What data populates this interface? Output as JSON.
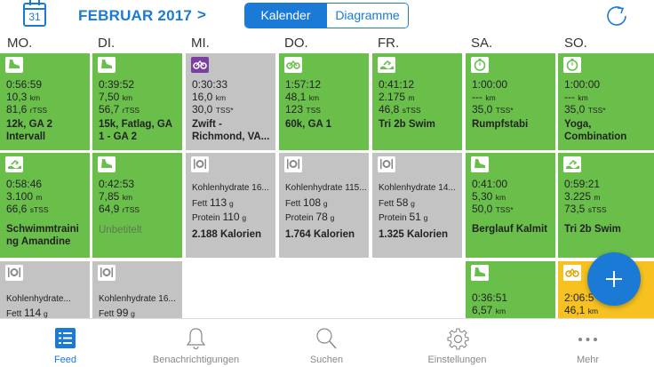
{
  "header": {
    "calendar_day": "31",
    "month_title": "FEBRUAR 2017",
    "month_chevron": ">",
    "segments": [
      "Kalender",
      "Diagramme"
    ]
  },
  "weekdays": [
    "MO.",
    "DI.",
    "MI.",
    "DO.",
    "FR.",
    "SA.",
    "SO."
  ],
  "row1": [
    {
      "icon": "running-shoe-icon",
      "time": "0:56:59",
      "dist": "10,3",
      "dist_unit": "km",
      "score": "81,6",
      "score_unit": "rTSS",
      "title": "12k, GA 2",
      "title2": "Intervall"
    },
    {
      "icon": "running-shoe-icon",
      "time": "0:39:52",
      "dist": "7,50",
      "dist_unit": "km",
      "score": "56,7",
      "score_unit": "rTSS",
      "title": "15k, Fatlag, GA",
      "title2": "1 - GA 2"
    },
    {
      "icon": "bike-icon",
      "time": "0:30:33",
      "dist": "16,0",
      "dist_unit": "km",
      "score": "30,0",
      "score_unit": "TSS*",
      "title": "Zwift -",
      "title2": "Richmond, VA..."
    },
    {
      "icon": "bike-icon",
      "time": "1:57:12",
      "dist": "48,1",
      "dist_unit": "km",
      "score": "123",
      "score_unit": "TSS",
      "title": "60k, GA 1",
      "title2": ""
    },
    {
      "icon": "swim-icon",
      "time": "0:41:12",
      "dist": "2.175",
      "dist_unit": "m",
      "score": "46,8",
      "score_unit": "sTSS",
      "title": "Tri 2b Swim",
      "title2": ""
    },
    {
      "icon": "stopwatch-icon",
      "time": "1:00:00",
      "dist": "---",
      "dist_unit": "km",
      "score": "35,0",
      "score_unit": "TSS*",
      "title": "Rumpfstabi",
      "title2": ""
    },
    {
      "icon": "stopwatch-icon",
      "time": "1:00:00",
      "dist": "---",
      "dist_unit": "km",
      "score": "35,0",
      "score_unit": "TSS*",
      "title": "Yoga,",
      "title2": "Combination"
    }
  ],
  "row2": [
    {
      "icon": "swim-icon",
      "time": "0:58:46",
      "dist": "3.100",
      "dist_unit": "m",
      "score": "66,6",
      "score_unit": "sTSS",
      "title": "Schwimmtraini",
      "title2": "ng Amandine"
    },
    {
      "icon": "running-shoe-icon",
      "time": "0:42:53",
      "dist": "7,85",
      "dist_unit": "km",
      "score": "64,9",
      "score_unit": "rTSS",
      "title": "Unbetitelt",
      "title2": ""
    },
    {
      "nutrition": true,
      "carbs": "Kohlenhydrate 16...",
      "fat_label": "Fett",
      "fat": "113",
      "protein_label": "Protein",
      "protein": "110",
      "unit": "g",
      "calories": "2.188 Kalorien"
    },
    {
      "nutrition": true,
      "carbs": "Kohlenhydrate 115...",
      "fat_label": "Fett",
      "fat": "108",
      "protein_label": "Protein",
      "protein": "78",
      "unit": "g",
      "calories": "1.764 Kalorien"
    },
    {
      "nutrition": true,
      "carbs": "Kohlenhydrate 14...",
      "fat_label": "Fett",
      "fat": "58",
      "protein_label": "Protein",
      "protein": "51",
      "unit": "g",
      "calories": "1.325 Kalorien"
    },
    {
      "icon": "running-shoe-icon",
      "time": "0:41:00",
      "dist": "5,30",
      "dist_unit": "km",
      "score": "50,0",
      "score_unit": "TSS*",
      "title": "Berglauf Kalmit",
      "title2": ""
    },
    {
      "icon": "swim-icon",
      "time": "0:59:21",
      "dist": "3.225",
      "dist_unit": "m",
      "score": "73,5",
      "score_unit": "sTSS",
      "title": "Tri 2b Swim",
      "title2": ""
    }
  ],
  "row3": {
    "mo": {
      "carbs": "Kohlenhydrate...",
      "fat_label": "Fett",
      "fat": "114",
      "unit": "g"
    },
    "di": {
      "carbs": "Kohlenhydrate 16...",
      "fat_label": "Fett",
      "fat": "99",
      "unit": "g"
    },
    "sa": {
      "time": "0:36:51",
      "dist": "6,57",
      "dist_unit": "km"
    },
    "so": {
      "time": "2:06:5",
      "dist": "46,1",
      "dist_unit": "km"
    }
  },
  "tabs": [
    "Feed",
    "Benachrichtigungen",
    "Suchen",
    "Einstellungen",
    "Mehr"
  ],
  "colors": {
    "accent": "#1a7ad6",
    "workout": "#6abf4b",
    "nutrition": "#c3c3c3",
    "highlight": "#f7c21f"
  }
}
